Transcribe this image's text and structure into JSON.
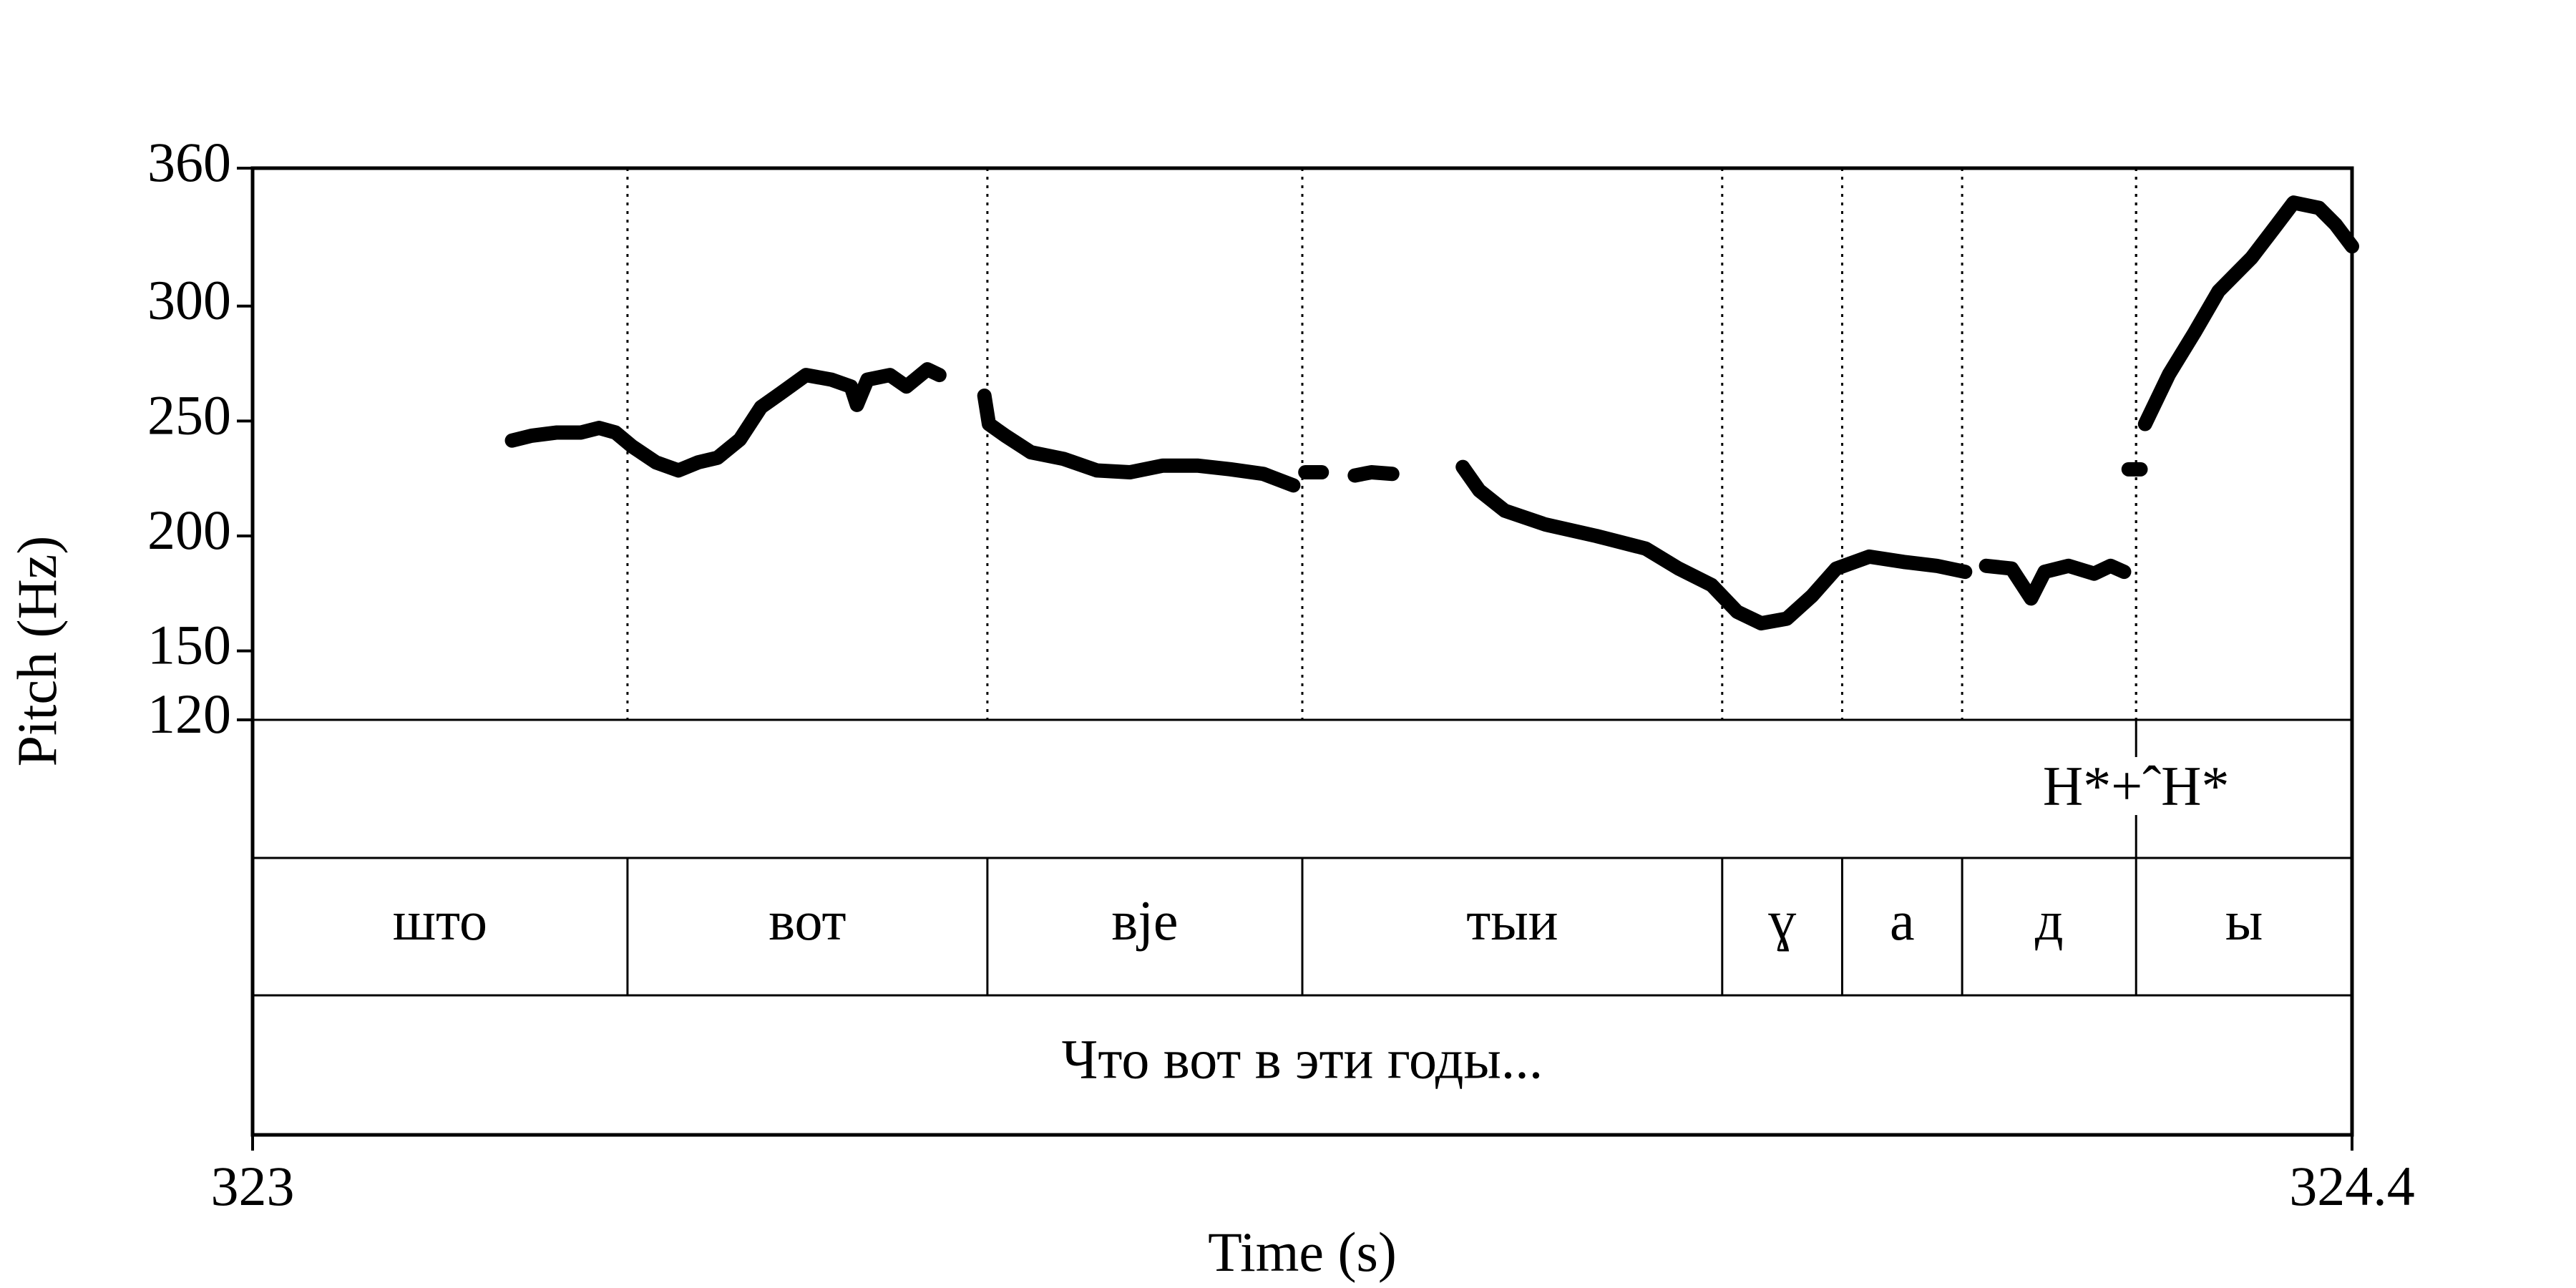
{
  "chart_data": {
    "type": "line",
    "y_label": "Pitch (Hz)",
    "x_label": "Time (s)",
    "color": "#000000",
    "xlim": [
      323,
      324.4
    ],
    "xticks": [
      323,
      324.4
    ],
    "ylim": [
      120,
      360
    ],
    "yticks": [
      120,
      150,
      200,
      250,
      300,
      360
    ],
    "x": [
      323.173,
      323.186,
      323.203,
      323.219,
      323.231,
      323.242,
      323.253,
      323.269,
      323.284,
      323.297,
      323.31,
      323.325,
      323.339,
      323.352,
      323.369,
      323.386,
      323.399,
      323.403,
      323.41,
      323.425,
      323.436,
      323.45,
      323.458,
      323.47,
      323.488,
      323.491,
      323.502,
      323.519,
      323.541,
      323.563,
      323.585,
      323.607,
      323.63,
      323.652,
      323.674,
      323.694,
      323.698,
      323.702,
      323.713,
      323.724,
      323.735,
      323.746,
      323.76,
      323.785,
      323.807,
      323.818,
      323.835,
      323.862,
      323.896,
      323.929,
      323.951,
      323.973,
      323.99,
      324.006,
      324.023,
      324.04,
      324.056,
      324.078,
      324.101,
      324.123,
      324.142,
      324.149,
      324.156,
      324.173,
      324.186,
      324.195,
      324.211,
      324.228,
      324.239,
      324.248,
      324.249,
      324.251,
      324.259,
      324.26,
      324.262,
      324.278,
      324.295,
      324.311,
      324.333,
      324.35,
      324.361,
      324.378,
      324.389,
      324.4
    ],
    "values": [
      241.5,
      243.6,
      245,
      245,
      247,
      245,
      239,
      232,
      228.5,
      232,
      234,
      242,
      256,
      262,
      270,
      268,
      265,
      257,
      268,
      270,
      265,
      272.5,
      270,
      null,
      261,
      248.7,
      243.6,
      236.4,
      233.5,
      228.5,
      227.7,
      230.6,
      230.6,
      229,
      227,
      222,
      null,
      227.7,
      227.7,
      null,
      226.3,
      227.7,
      227,
      null,
      230,
      219.8,
      211,
      205,
      200,
      194.5,
      185.8,
      178.6,
      167,
      162,
      164,
      174,
      185.8,
      191,
      188.7,
      187,
      184.4,
      null,
      187,
      185.8,
      172.8,
      184.4,
      187,
      183.6,
      187,
      184.4,
      null,
      229,
      229,
      null,
      248.7,
      270.4,
      288.5,
      306.5,
      321,
      335.5,
      345,
      342.7,
      335.5,
      326
    ],
    "tiers": [
      {
        "points": [
          {
            "time": 324.256,
            "label": "H*+ˆH*"
          }
        ]
      },
      {
        "boundaries": [
          323.25,
          323.49,
          323.7,
          323.98,
          324.06,
          324.14,
          324.256
        ],
        "labels": [
          "што",
          "вот",
          "вје",
          "тыи",
          "ɣ",
          "а",
          "д",
          "ы"
        ]
      },
      {
        "labels": [
          "Что вот в эти годы..."
        ]
      }
    ]
  }
}
